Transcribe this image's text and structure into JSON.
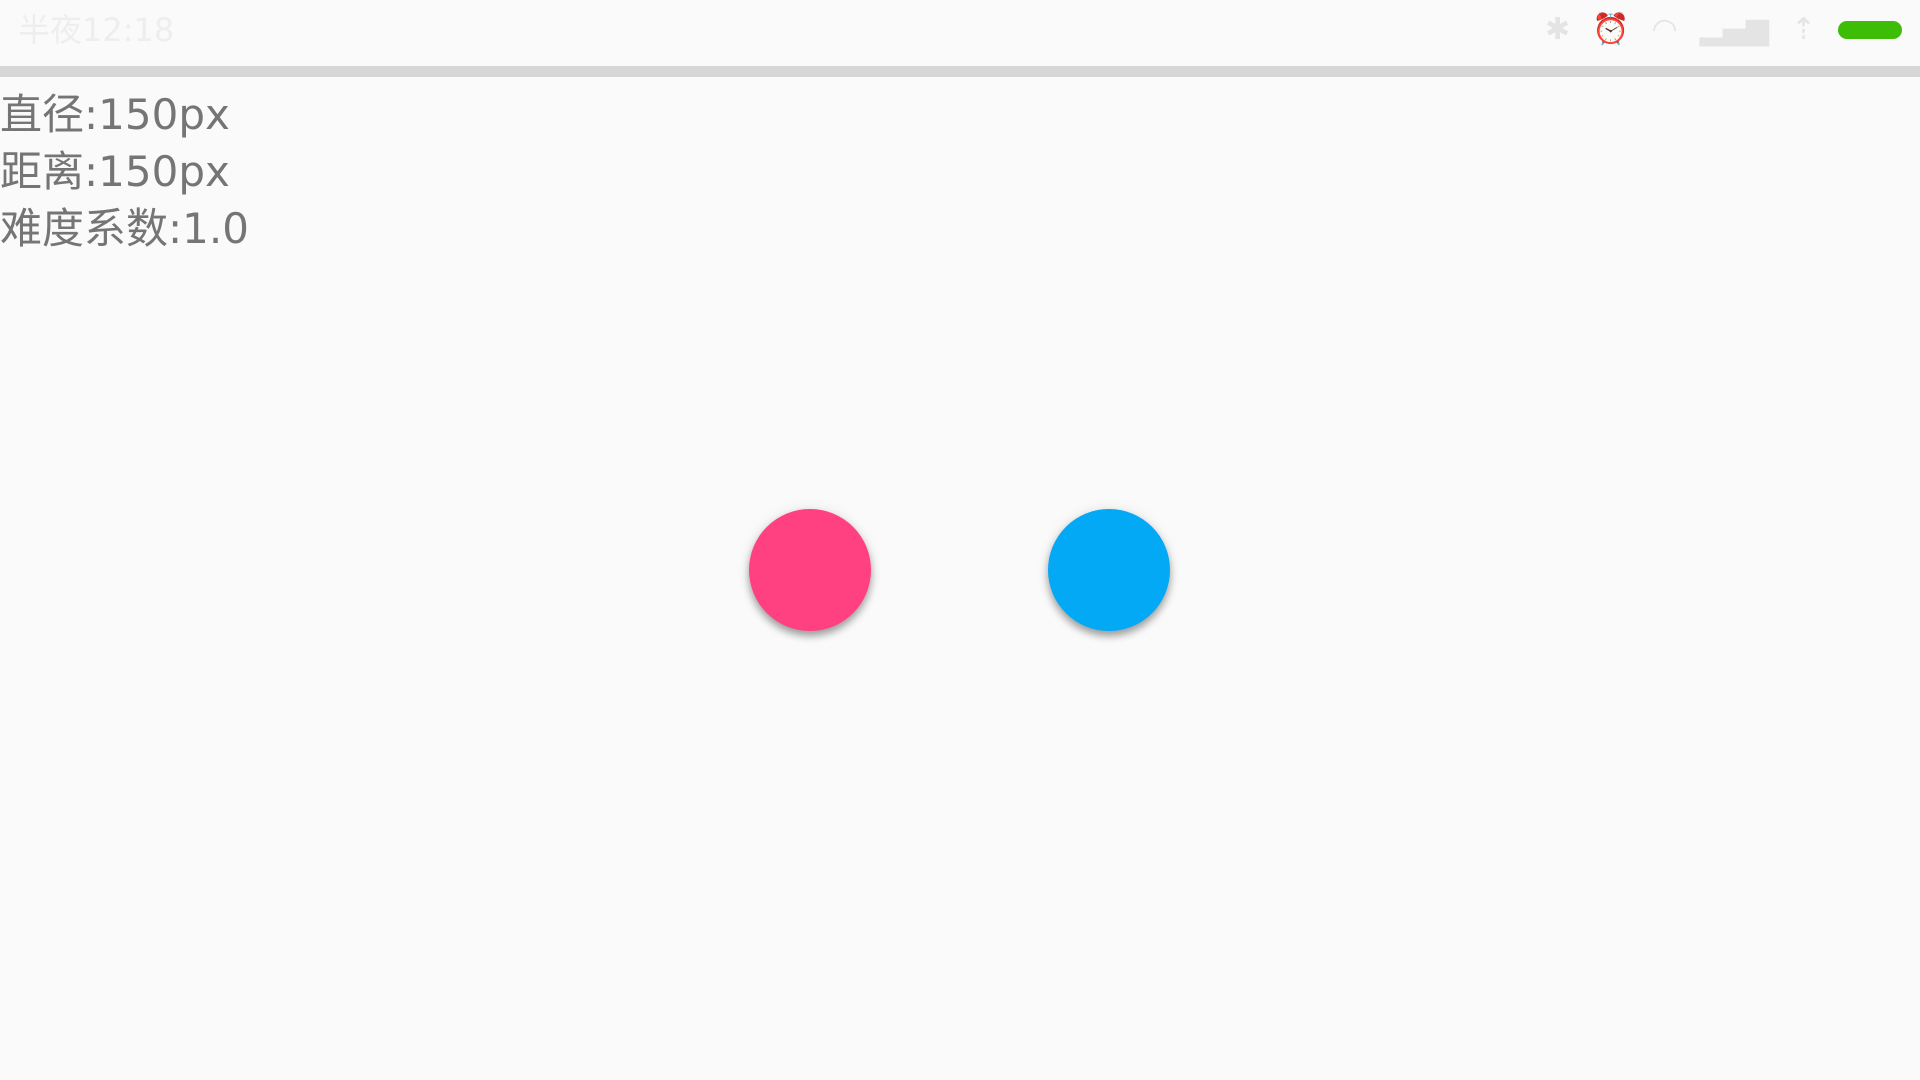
{
  "status_bar": {
    "time": "半夜12:18",
    "icons": [
      "bluetooth-icon",
      "alarm-icon",
      "wifi-icon",
      "signal-icon",
      "charging-icon",
      "battery-icon"
    ],
    "battery_color": "#3ebd06"
  },
  "info": {
    "diameter": "直径:150px",
    "distance": "距离:150px",
    "difficulty": "难度系数:1.0"
  },
  "balls": {
    "left_color": "#ff4081",
    "right_color": "#03a9f4"
  }
}
